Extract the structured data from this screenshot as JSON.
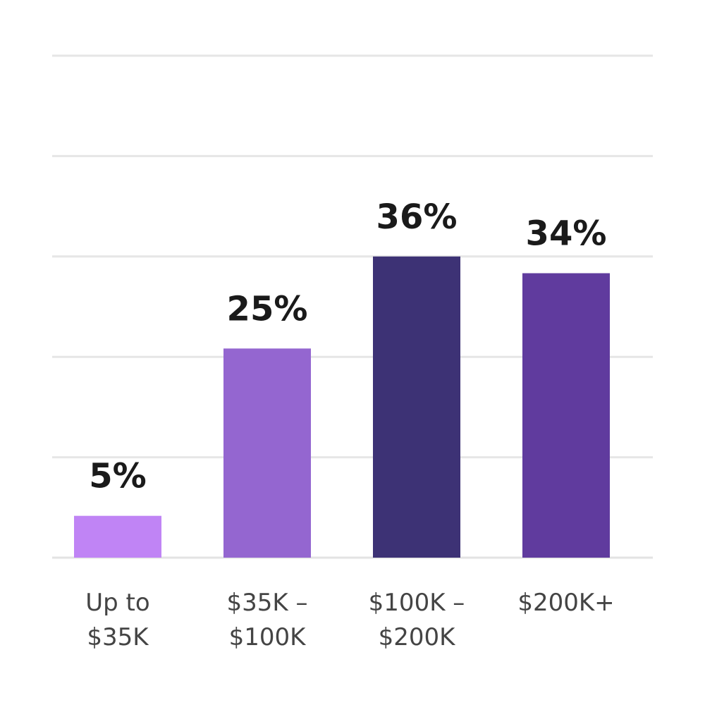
{
  "chart_data": {
    "type": "bar",
    "title": "",
    "xlabel": "",
    "ylabel": "",
    "categories": [
      [
        "Up to",
        "$35K"
      ],
      [
        "$35K –",
        "$100K"
      ],
      [
        "$100K –",
        "$200K"
      ],
      [
        "$200K+"
      ]
    ],
    "values": [
      5,
      25,
      36,
      34
    ],
    "value_labels": [
      "5%",
      "25%",
      "36%",
      "34%"
    ],
    "bar_colors": [
      "#c084f5",
      "#9466d0",
      "#3d3275",
      "#603b9e"
    ],
    "ylim": [
      0,
      60
    ],
    "grid_step": 12,
    "grid": true,
    "y_tick_labels_visible": false,
    "legend": "none"
  }
}
